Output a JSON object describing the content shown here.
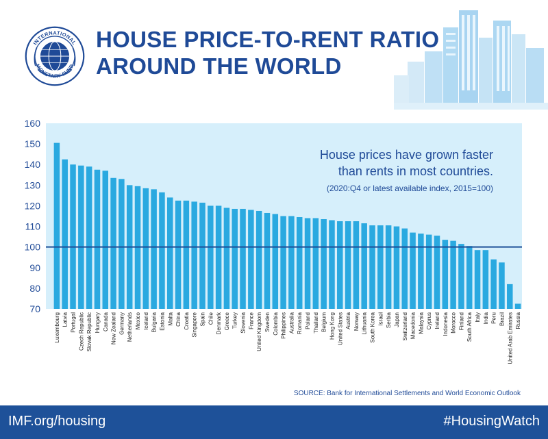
{
  "header": {
    "title_line1": "HOUSE PRICE-TO-RENT RATIO",
    "title_line2": "AROUND THE WORLD",
    "logo_text": "INTERNATIONAL MONETARY FUND"
  },
  "chart_data": {
    "type": "bar",
    "annotation_line1": "House prices have grown faster",
    "annotation_line2": "than rents in most countries.",
    "note": "(2020:Q4 or latest available index, 2015=100)",
    "ylim": [
      70,
      160
    ],
    "yticks": [
      70,
      80,
      90,
      100,
      110,
      120,
      130,
      140,
      150,
      160
    ],
    "reference_line": 100,
    "bar_color": "#2aa9e0",
    "plot_bg": "#d6effb",
    "reference_color": "#1d4f97",
    "categories": [
      "Luxembourg",
      "Latvia",
      "Portugal",
      "Czech Republic",
      "Slovak Republic",
      "Hungary",
      "Canada",
      "New Zealand",
      "Germany",
      "Netherlands",
      "Mexico",
      "Iceland",
      "Bulgaria",
      "Estonia",
      "Malta",
      "China",
      "Croatia",
      "Singapore",
      "Spain",
      "Chile",
      "Denmark",
      "Greece",
      "Turkey",
      "Slovenia",
      "France",
      "United Kingdom",
      "Sweden",
      "Colombia",
      "Philippines",
      "Australia",
      "Romania",
      "Poland",
      "Thailand",
      "Belgium",
      "Hong Kong",
      "United States",
      "Austria",
      "Norway",
      "Lithuania",
      "South Korea",
      "Israel",
      "Serbia",
      "Japan",
      "Switzerland",
      "Macedonia",
      "Malaysia",
      "Cyprus",
      "Ireland",
      "Indonesia",
      "Morocco",
      "Finland",
      "South Africa",
      "Italy",
      "India",
      "Peru",
      "Brazil",
      "United Arab Emirates",
      "Russia"
    ],
    "values": [
      150.5,
      142.5,
      140,
      139.5,
      139,
      137.5,
      137,
      133.5,
      133,
      130,
      129.5,
      128.5,
      128,
      126.5,
      124,
      122.5,
      122.5,
      122,
      121.5,
      120,
      120,
      119,
      118.5,
      118.5,
      118,
      117.5,
      116.5,
      116,
      115,
      115,
      114.5,
      114,
      114,
      113.5,
      113,
      112.5,
      112.5,
      112.5,
      111.5,
      110.5,
      110.5,
      110.5,
      110,
      109,
      107,
      106.5,
      106,
      105.5,
      103.5,
      103,
      101.5,
      100.5,
      98.5,
      98.5,
      94,
      92.5,
      82,
      72.5
    ]
  },
  "source": "SOURCE: Bank for International Settlements and World Economic Outlook",
  "footer": {
    "left": "IMF.org/housing",
    "right": "#HousingWatch"
  }
}
